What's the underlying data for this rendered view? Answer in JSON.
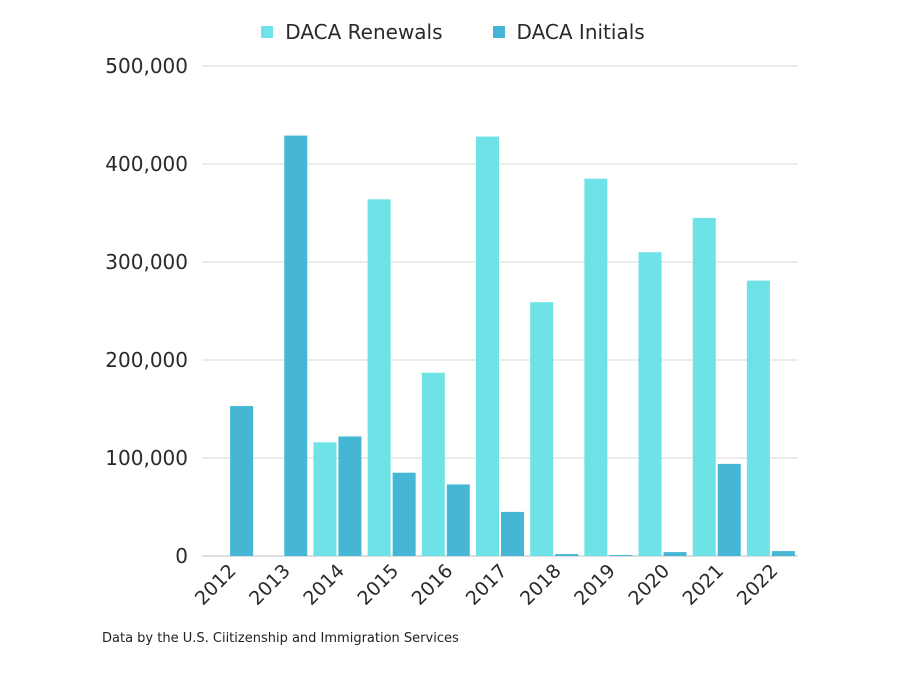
{
  "chart_data": {
    "type": "bar",
    "title": "",
    "xlabel": "",
    "ylabel": "",
    "ylim": [
      0,
      500000
    ],
    "yticks": [
      0,
      100000,
      200000,
      300000,
      400000,
      500000
    ],
    "ytick_labels": [
      "0",
      "100,000",
      "200,000",
      "300,000",
      "400,000",
      "500,000"
    ],
    "grid": true,
    "legend_position": "top-center",
    "categories": [
      "2012",
      "2013",
      "2014",
      "2015",
      "2016",
      "2017",
      "2018",
      "2019",
      "2020",
      "2021",
      "2022"
    ],
    "series": [
      {
        "name": "DACA Renewals",
        "color": "#6de3e7",
        "values": [
          0,
          0,
          116000,
          364000,
          187000,
          428000,
          259000,
          385000,
          310000,
          345000,
          281000
        ]
      },
      {
        "name": "DACA Initials",
        "color": "#45b7d4",
        "values": [
          153000,
          429000,
          122000,
          85000,
          73000,
          45000,
          2000,
          1000,
          4000,
          94000,
          5000
        ]
      }
    ]
  },
  "caption": "Data by the U.S. Ciitizenship and Immigration Services"
}
